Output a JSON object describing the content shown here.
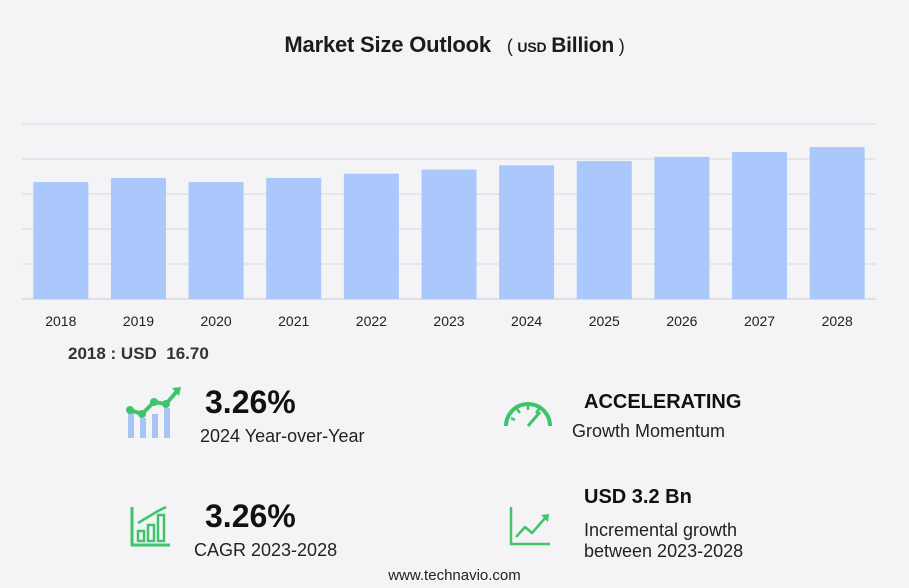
{
  "header": {
    "title": "Market Size Outlook",
    "unit_open": "(",
    "unit_currency": "USD",
    "unit_scale": "Billion",
    "unit_close": ")"
  },
  "chart_data": {
    "type": "bar",
    "categories": [
      "2018",
      "2019",
      "2020",
      "2021",
      "2022",
      "2023",
      "2024",
      "2025",
      "2026",
      "2027",
      "2028"
    ],
    "values": [
      16.7,
      17.3,
      16.7,
      17.3,
      17.9,
      18.5,
      19.1,
      19.7,
      20.3,
      21.0,
      21.7
    ],
    "ylim": [
      0,
      25
    ],
    "grid": true,
    "bar_color": "#aac8fb",
    "grid_color": "#d9d9de"
  },
  "base_year_note": "2018 : USD  16.70",
  "kpis": {
    "yoy": {
      "value": "3.26%",
      "label": "2024 Year-over-Year"
    },
    "momentum": {
      "value": "ACCELERATING",
      "label": "Growth Momentum"
    },
    "cagr": {
      "value": "3.26%",
      "label": "CAGR 2023-2028"
    },
    "incremental": {
      "value": "USD 3.2 Bn",
      "label_line1": "Incremental growth",
      "label_line2": "between 2023-2028"
    }
  },
  "icon_color": "#3fc46b",
  "icon_blue": "#a7c4f5",
  "footer": "www.technavio.com"
}
